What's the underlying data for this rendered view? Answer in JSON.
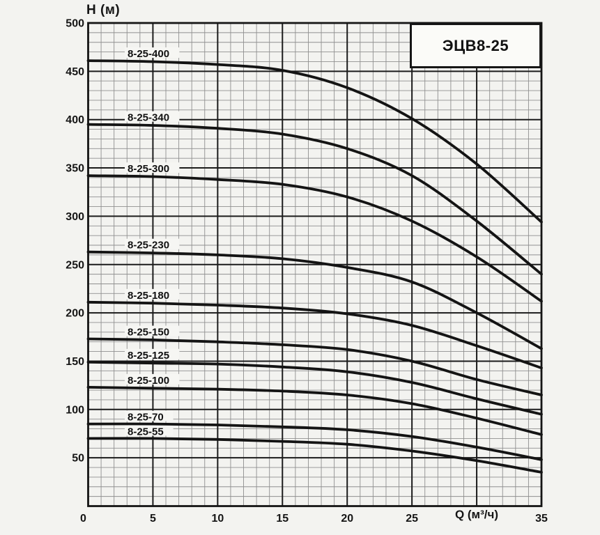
{
  "page": {
    "background": "#f3f3f0"
  },
  "chart_data": {
    "type": "line",
    "title": "ЭЦВ8-25",
    "xlabel": "Q (м³/ч)",
    "ylabel": "H (м)",
    "x": [
      0,
      5,
      10,
      15,
      20,
      25,
      30,
      35
    ],
    "xlim": [
      0,
      35
    ],
    "ylim": [
      0,
      500
    ],
    "x_major_step": 5,
    "x_minor_step": 1,
    "y_major_step": 50,
    "y_minor_step": 10,
    "grid": "major+minor",
    "legend_position": "inline-curve-labels",
    "x_tick_labels": [
      "0",
      "5",
      "10",
      "15",
      "20",
      "25",
      "",
      "35"
    ],
    "y_tick_labels": [
      "50",
      "100",
      "150",
      "200",
      "250",
      "300",
      "350",
      "400",
      "450",
      "500"
    ],
    "line_color": "#141414",
    "minor_grid_color": "#8f8f8f",
    "major_grid_color": "#1b1b1b",
    "series": [
      {
        "name": "8-25-400",
        "values": [
          461,
          460,
          457,
          451,
          433,
          401,
          354,
          294
        ]
      },
      {
        "name": "8-25-340",
        "values": [
          395,
          394,
          391,
          385,
          370,
          342,
          295,
          240
        ]
      },
      {
        "name": "8-25-300",
        "values": [
          342,
          341,
          338,
          333,
          320,
          295,
          258,
          212
        ]
      },
      {
        "name": "8-25-230",
        "values": [
          263,
          262,
          260,
          256,
          247,
          232,
          200,
          163
        ]
      },
      {
        "name": "8-25-180",
        "values": [
          211,
          210,
          208,
          205,
          199,
          187,
          166,
          143
        ]
      },
      {
        "name": "8-25-150",
        "values": [
          173,
          172,
          170,
          167,
          162,
          150,
          131,
          115
        ]
      },
      {
        "name": "8-25-125",
        "values": [
          149,
          148,
          147,
          144,
          139,
          128,
          111,
          95
        ]
      },
      {
        "name": "8-25-100",
        "values": [
          123,
          122,
          121,
          119,
          115,
          106,
          91,
          74
        ]
      },
      {
        "name": "8-25-70",
        "values": [
          85,
          85,
          84,
          82,
          79,
          72,
          61,
          48
        ]
      },
      {
        "name": "8-25-55",
        "values": [
          70,
          70,
          69,
          67,
          64,
          57,
          47,
          35
        ]
      }
    ]
  }
}
